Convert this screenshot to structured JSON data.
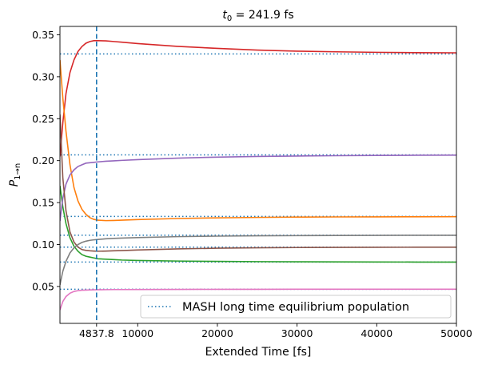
{
  "chart_data": {
    "type": "line",
    "title": "$t_0$ = 241.9 fs",
    "title_parts": {
      "symbol": "t",
      "subscript": "0",
      "rest": " = 241.9 fs"
    },
    "xlabel": "Extended Time [fs]",
    "ylabel_parts": {
      "symbol": "P",
      "subscript": "1→n"
    },
    "xlim": [
      241.9,
      50000
    ],
    "ylim": [
      0.006,
      0.36
    ],
    "xticks": [
      10000,
      20000,
      30000,
      40000,
      50000
    ],
    "xtick_labels": [
      "10000",
      "20000",
      "30000",
      "40000",
      "50000"
    ],
    "yticks": [
      0.05,
      0.1,
      0.15,
      0.2,
      0.25,
      0.3,
      0.35
    ],
    "ytick_labels": [
      "0.05",
      "0.10",
      "0.15",
      "0.20",
      "0.25",
      "0.30",
      "0.35"
    ],
    "vline": {
      "x": 4837.8,
      "label": "4837.8",
      "color": "#1f77b4"
    },
    "equilibrium_lines": {
      "values": [
        0.3272,
        0.2069,
        0.1335,
        0.1111,
        0.0969,
        0.0791,
        0.0467
      ],
      "color": "#1f77b4",
      "legend": "MASH long time equilibrium population"
    },
    "legend_position": "lower-right",
    "grid": false,
    "series": [
      {
        "color": "#d62728",
        "x": [
          241.9,
          600,
          1000,
          1500,
          2000,
          2500,
          3000,
          3500,
          4000,
          4500,
          5000,
          6000,
          7000,
          8000,
          10000,
          15000,
          20000,
          25000,
          30000,
          35000,
          40000,
          45000,
          50000
        ],
        "values": [
          0.205,
          0.245,
          0.28,
          0.305,
          0.32,
          0.33,
          0.336,
          0.34,
          0.342,
          0.343,
          0.343,
          0.3428,
          0.342,
          0.3412,
          0.3395,
          0.3362,
          0.3338,
          0.3318,
          0.3305,
          0.3297,
          0.3291,
          0.3287,
          0.3285
        ]
      },
      {
        "color": "#ff7f0e",
        "x": [
          241.9,
          600,
          1000,
          1500,
          2000,
          2500,
          3000,
          3500,
          4000,
          4500,
          5000,
          6000,
          7000,
          8000,
          10000,
          15000,
          20000,
          25000,
          30000,
          35000,
          40000,
          45000,
          50000
        ],
        "values": [
          0.32,
          0.275,
          0.235,
          0.195,
          0.168,
          0.152,
          0.142,
          0.136,
          0.132,
          0.13,
          0.129,
          0.1285,
          0.1287,
          0.129,
          0.1297,
          0.131,
          0.1318,
          0.1323,
          0.1327,
          0.1329,
          0.133,
          0.1331,
          0.1332
        ]
      },
      {
        "color": "#2ca02c",
        "x": [
          241.9,
          600,
          1000,
          1500,
          2000,
          2500,
          3000,
          3500,
          4000,
          4500,
          5000,
          6000,
          7000,
          8000,
          10000,
          15000,
          20000,
          25000,
          30000,
          35000,
          40000,
          45000,
          50000
        ],
        "values": [
          0.17,
          0.145,
          0.125,
          0.108,
          0.098,
          0.092,
          0.088,
          0.086,
          0.085,
          0.084,
          0.083,
          0.0825,
          0.082,
          0.0815,
          0.081,
          0.0803,
          0.0799,
          0.0796,
          0.0794,
          0.0793,
          0.0792,
          0.0791,
          0.0791
        ]
      },
      {
        "color": "#9467bd",
        "x": [
          241.9,
          600,
          1000,
          1500,
          2000,
          2500,
          3000,
          3500,
          4000,
          4500,
          5000,
          6000,
          7000,
          8000,
          10000,
          15000,
          20000,
          25000,
          30000,
          35000,
          40000,
          45000,
          50000
        ],
        "values": [
          0.128,
          0.155,
          0.172,
          0.183,
          0.189,
          0.193,
          0.195,
          0.197,
          0.1975,
          0.198,
          0.1985,
          0.1993,
          0.1998,
          0.2003,
          0.2012,
          0.203,
          0.2042,
          0.205,
          0.2055,
          0.2059,
          0.2062,
          0.2064,
          0.2066
        ]
      },
      {
        "color": "#8c564b",
        "x": [
          241.9,
          600,
          1000,
          1500,
          2000,
          2500,
          3000,
          3500,
          4000,
          4500,
          5000,
          6000,
          7000,
          8000,
          10000,
          15000,
          20000,
          25000,
          30000,
          35000,
          40000,
          45000,
          50000
        ],
        "values": [
          0.255,
          0.18,
          0.14,
          0.115,
          0.103,
          0.097,
          0.094,
          0.093,
          0.0925,
          0.0922,
          0.092,
          0.0922,
          0.0925,
          0.0928,
          0.0935,
          0.0948,
          0.0956,
          0.0961,
          0.0964,
          0.0966,
          0.0967,
          0.0968,
          0.0968
        ]
      },
      {
        "color": "#7f7f7f",
        "x": [
          241.9,
          600,
          1000,
          1500,
          2000,
          2500,
          3000,
          3500,
          4000,
          4500,
          5000,
          6000,
          7000,
          8000,
          10000,
          15000,
          20000,
          25000,
          30000,
          35000,
          40000,
          45000,
          50000
        ],
        "values": [
          0.052,
          0.068,
          0.08,
          0.09,
          0.096,
          0.1,
          0.1025,
          0.104,
          0.105,
          0.1056,
          0.106,
          0.1068,
          0.1073,
          0.1077,
          0.1083,
          0.1094,
          0.11,
          0.1104,
          0.1106,
          0.1108,
          0.1109,
          0.111,
          0.111
        ]
      },
      {
        "color": "#e377c2",
        "x": [
          241.9,
          600,
          1000,
          1500,
          2000,
          2500,
          3000,
          3500,
          4000,
          4500,
          5000,
          6000,
          7000,
          8000,
          10000,
          15000,
          20000,
          25000,
          30000,
          35000,
          40000,
          45000,
          50000
        ],
        "values": [
          0.022,
          0.032,
          0.038,
          0.042,
          0.044,
          0.045,
          0.0455,
          0.0457,
          0.0459,
          0.046,
          0.0461,
          0.0462,
          0.0463,
          0.0463,
          0.0464,
          0.0465,
          0.0466,
          0.0466,
          0.0467,
          0.0467,
          0.0467,
          0.0467,
          0.0467
        ]
      }
    ]
  }
}
